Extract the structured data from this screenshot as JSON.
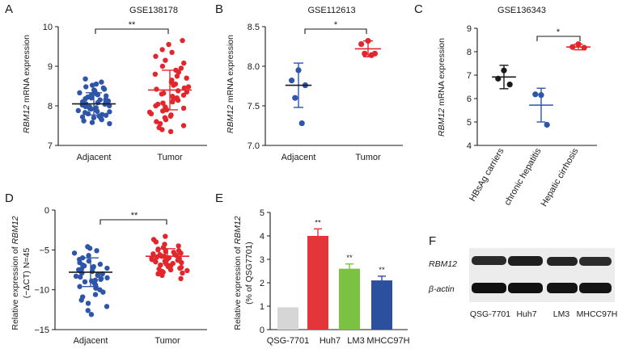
{
  "colors": {
    "blue": "#2e55a8",
    "red": "#e3262c",
    "black": "#1a1a1a",
    "bar_gray": "#d6d6d6",
    "bar_red": "#e3353a",
    "bar_green": "#7cc242",
    "bar_blue": "#2c4f9e"
  },
  "chart_data": [
    {
      "panel": "A",
      "type": "scatter",
      "title": "GSE138178",
      "ylabel_gene": "RBM12",
      "ylabel_rest": " mRNA expression",
      "categories": [
        "Adjacent",
        "Tumor"
      ],
      "ylim": [
        7,
        10
      ],
      "yticks": [
        7,
        8,
        9,
        10
      ],
      "significance": "**",
      "series": [
        {
          "name": "Adjacent",
          "color": "blue",
          "mean": 8.05,
          "sd": 0.28,
          "values": [
            8.68,
            8.6,
            8.55,
            8.52,
            8.48,
            8.45,
            8.42,
            8.4,
            8.38,
            8.35,
            8.33,
            8.3,
            8.28,
            8.26,
            8.25,
            8.22,
            8.2,
            8.18,
            8.16,
            8.15,
            8.13,
            8.12,
            8.1,
            8.08,
            8.07,
            8.05,
            8.04,
            8.02,
            8.0,
            7.98,
            7.97,
            7.95,
            7.93,
            7.92,
            7.9,
            7.88,
            7.86,
            7.85,
            7.83,
            7.8,
            7.78,
            7.76,
            7.74,
            7.72,
            7.7,
            7.68,
            7.65,
            7.62,
            7.58,
            7.55
          ]
        },
        {
          "name": "Tumor",
          "color": "red",
          "mean": 8.4,
          "sd": 0.5,
          "values": [
            9.65,
            9.55,
            9.42,
            9.35,
            9.25,
            9.15,
            9.08,
            9.0,
            8.95,
            8.9,
            8.85,
            8.8,
            8.75,
            8.7,
            8.65,
            8.6,
            8.55,
            8.52,
            8.48,
            8.45,
            8.42,
            8.38,
            8.35,
            8.32,
            8.3,
            8.27,
            8.24,
            8.2,
            8.17,
            8.14,
            8.1,
            8.07,
            8.04,
            8.0,
            7.97,
            7.94,
            7.9,
            7.87,
            7.84,
            7.8,
            7.77,
            7.74,
            7.7,
            7.65,
            7.6,
            7.55,
            7.5,
            7.45,
            7.4,
            7.35
          ]
        }
      ]
    },
    {
      "panel": "B",
      "type": "scatter",
      "title": "GSE112613",
      "ylabel_gene": "RBM12",
      "ylabel_rest": " mRNA expression",
      "categories": [
        "Adjacent",
        "Tumor"
      ],
      "ylim": [
        7.0,
        8.5
      ],
      "yticks": [
        7.0,
        7.5,
        8.0,
        8.5
      ],
      "ytick_labels": [
        "7.0",
        "7.5",
        "8.0",
        "8.5"
      ],
      "significance": "*",
      "series": [
        {
          "name": "Adjacent",
          "color": "blue",
          "mean": 7.76,
          "sd": 0.28,
          "values": [
            7.95,
            7.82,
            7.76,
            7.6,
            7.28
          ]
        },
        {
          "name": "Tumor",
          "color": "red",
          "mean": 8.22,
          "sd": 0.1,
          "values": [
            8.32,
            8.28,
            8.16,
            8.16,
            8.14
          ]
        }
      ]
    },
    {
      "panel": "C",
      "type": "scatter",
      "title": "GSE136343",
      "ylabel_gene": "RBM12",
      "ylabel_rest": " mRNA expression",
      "categories": [
        "HBsAg carriers",
        "chronic hepatitis",
        "Hepatic cirrhosis"
      ],
      "ylim": [
        4,
        9
      ],
      "yticks": [
        4,
        5,
        6,
        7,
        8,
        9
      ],
      "significance": "*",
      "series": [
        {
          "name": "HBsAg carriers",
          "color": "black",
          "mean": 6.92,
          "sd": 0.5,
          "values": [
            7.2,
            6.85,
            6.6
          ]
        },
        {
          "name": "chronic hepatitis",
          "color": "blue",
          "mean": 5.72,
          "sd": 0.72,
          "values": [
            6.15,
            6.18,
            4.88
          ]
        },
        {
          "name": "Hepatic cirrhosis",
          "color": "red",
          "mean": 8.2,
          "sd": 0.12,
          "values": [
            8.32,
            8.2,
            8.17
          ]
        }
      ]
    },
    {
      "panel": "D",
      "type": "scatter",
      "title": "",
      "ylabel_line1_pre": "Relative expression of ",
      "ylabel_gene": "RBM12",
      "ylabel_line2": "(−ΔCT) N=45",
      "categories": [
        "Adjacent",
        "Tumor"
      ],
      "ylim": [
        -15,
        0
      ],
      "yticks": [
        -15,
        -10,
        -5,
        0
      ],
      "ytick_labels": [
        "−15",
        "−10",
        "−5",
        "0"
      ],
      "significance": "**",
      "series": [
        {
          "name": "Adjacent",
          "color": "blue",
          "mean": -7.8,
          "sd": 1.8,
          "values": [
            -4.6,
            -4.8,
            -5.1,
            -5.4,
            -5.7,
            -6.0,
            -6.2,
            -6.4,
            -6.6,
            -6.8,
            -6.9,
            -7.0,
            -7.1,
            -7.2,
            -7.3,
            -7.4,
            -7.5,
            -7.6,
            -7.7,
            -7.8,
            -7.9,
            -8.0,
            -8.1,
            -8.2,
            -8.3,
            -8.4,
            -8.5,
            -8.6,
            -8.7,
            -8.8,
            -8.9,
            -9.0,
            -9.2,
            -9.4,
            -9.6,
            -9.8,
            -10.0,
            -10.3,
            -10.6,
            -10.9,
            -11.3,
            -11.7,
            -12.1,
            -12.6,
            -13.1
          ]
        },
        {
          "name": "Tumor",
          "color": "red",
          "mean": -5.8,
          "sd": 0.95,
          "values": [
            -3.3,
            -3.7,
            -4.0,
            -4.3,
            -4.5,
            -4.7,
            -4.9,
            -5.0,
            -5.1,
            -5.2,
            -5.3,
            -5.4,
            -5.5,
            -5.6,
            -5.6,
            -5.7,
            -5.8,
            -5.8,
            -5.9,
            -6.0,
            -6.0,
            -6.1,
            -6.2,
            -6.2,
            -6.3,
            -6.4,
            -6.4,
            -6.5,
            -6.6,
            -6.7,
            -6.8,
            -6.9,
            -7.0,
            -7.1,
            -7.2,
            -7.3,
            -7.4,
            -7.5,
            -7.6,
            -7.7,
            -7.8,
            -7.9,
            -8.0,
            -8.2,
            -8.6
          ]
        }
      ]
    },
    {
      "panel": "E",
      "type": "bar",
      "ylabel_line1_pre": "Relative expression of ",
      "ylabel_gene": "RBM12",
      "ylabel_line2": "(% of QSG7701)",
      "categories": [
        "QSG-7701",
        "Huh7",
        "LM3",
        "MHCC97H"
      ],
      "values": [
        0.95,
        4.0,
        2.6,
        2.1
      ],
      "errors": [
        0,
        0.3,
        0.2,
        0.18
      ],
      "bar_colors": [
        "bar_gray",
        "bar_red",
        "bar_green",
        "bar_blue"
      ],
      "significance": [
        "",
        "**",
        "**",
        "**"
      ],
      "ylim": [
        0,
        5
      ],
      "yticks": [
        0,
        1,
        2,
        3,
        4,
        5
      ]
    }
  ],
  "panel_letters": {
    "a": "A",
    "b": "B",
    "c": "C",
    "d": "D",
    "e": "E",
    "f": "F"
  },
  "western_blot": {
    "rows": [
      "RBM12",
      "β-actin"
    ],
    "lanes": [
      "QSG-7701",
      "Huh7",
      "LM3",
      "MHCC97H"
    ]
  }
}
